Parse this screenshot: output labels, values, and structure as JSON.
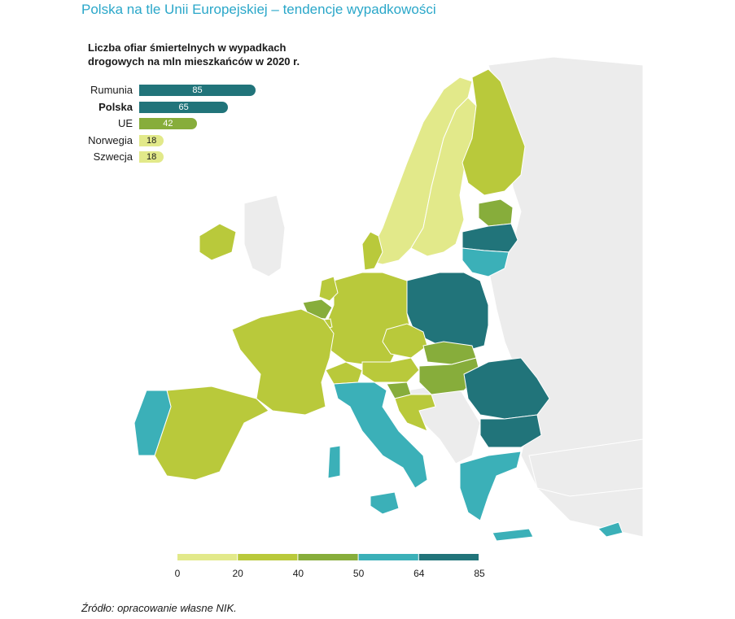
{
  "title": "Polska na tle Unii Europejskiej – tendencje wypadkowości",
  "chart_heading": "Liczba ofiar śmiertelnych w wypadkach drogowych na mln mieszkańców w 2020 r.",
  "colors": {
    "class_0_20": "#e2e98a",
    "class_20_40": "#b9c93b",
    "class_40_50": "#87ad3b",
    "class_50_64": "#3bb0b8",
    "class_64_85": "#21747a",
    "no_data": "#ececec"
  },
  "chart_data": {
    "type": "bar",
    "categories": [
      "Rumunia",
      "Polska",
      "UE",
      "Norwegia",
      "Szwecja"
    ],
    "values": [
      85,
      65,
      42,
      18,
      18
    ],
    "bold_category": "Polska"
  },
  "legend": {
    "ticks": [
      "0",
      "20",
      "40",
      "50",
      "64",
      "85"
    ]
  },
  "map_regions": [
    {
      "name": "Norwegia",
      "class": 0
    },
    {
      "name": "Szwecja",
      "class": 0
    },
    {
      "name": "Finlandia",
      "class": 1
    },
    {
      "name": "Estonia",
      "class": 2
    },
    {
      "name": "Łotwa",
      "class": 4
    },
    {
      "name": "Litwa",
      "class": 3
    },
    {
      "name": "Polska",
      "class": 4
    },
    {
      "name": "Niemcy",
      "class": 1
    },
    {
      "name": "Dania",
      "class": 1
    },
    {
      "name": "Holandia",
      "class": 1
    },
    {
      "name": "Belgia",
      "class": 2
    },
    {
      "name": "Luksemburg",
      "class": 1
    },
    {
      "name": "Francja",
      "class": 1
    },
    {
      "name": "Hiszpania",
      "class": 1
    },
    {
      "name": "Portugalia",
      "class": 3
    },
    {
      "name": "Irlandia",
      "class": 1
    },
    {
      "name": "Włochy",
      "class": 1
    },
    {
      "name": "Austria",
      "class": 1
    },
    {
      "name": "Szwajcaria",
      "class": 1
    },
    {
      "name": "Czechy",
      "class": 2
    },
    {
      "name": "Słowacja",
      "class": 2
    },
    {
      "name": "Węgry",
      "class": 2
    },
    {
      "name": "Słowenia",
      "class": 1
    },
    {
      "name": "Chorwacja",
      "class": 3
    },
    {
      "name": "Rumunia",
      "class": 4
    },
    {
      "name": "Bułgaria",
      "class": 4
    },
    {
      "name": "Grecja",
      "class": 3
    },
    {
      "name": "Cypr",
      "class": 3
    }
  ],
  "source": "Źródło: opracowanie własne NIK."
}
